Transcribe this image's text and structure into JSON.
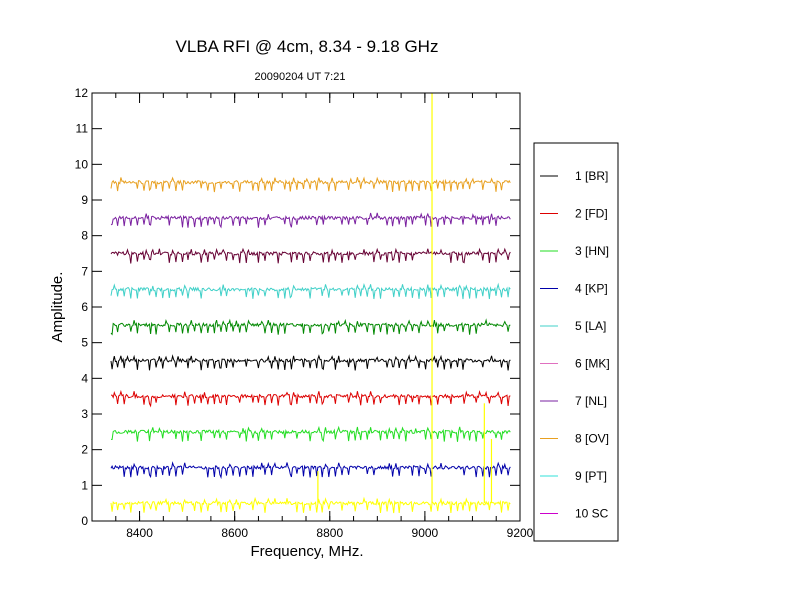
{
  "chart_data": {
    "type": "line",
    "title": "VLBA RFI @ 4cm, 8.34 - 9.18 GHz",
    "subtitle": "20090204   UT 7:21",
    "xlabel": "Frequency, MHz.",
    "ylabel": "Amplitude.",
    "xlim": [
      8300,
      9200
    ],
    "ylim": [
      0,
      12
    ],
    "x_range": [
      8340,
      9180
    ],
    "x_ticks": [
      8400,
      8600,
      8800,
      9000,
      9200
    ],
    "y_ticks": [
      0,
      1,
      2,
      3,
      4,
      5,
      6,
      7,
      8,
      9,
      10,
      11,
      12
    ],
    "grid": false,
    "legend_position": "right",
    "series": [
      {
        "name": "1 [BR]",
        "color": "#000000",
        "baseline": 4.5
      },
      {
        "name": "2 [FD]",
        "color": "#dd0000",
        "baseline": 3.5
      },
      {
        "name": "3 [HN]",
        "color": "#22dd22",
        "baseline": 2.5
      },
      {
        "name": "4 [KP]",
        "color": "#0000aa",
        "baseline": 1.5
      },
      {
        "name": "5 [LA]",
        "color": "#40d0c8",
        "baseline": 6.5
      },
      {
        "name": "6 [MK]",
        "color": "#e070c0",
        "baseline": null
      },
      {
        "name": "7 [NL]",
        "color": "#7a20a0",
        "baseline": 8.5
      },
      {
        "name": "8 [OV]",
        "color": "#e8a020",
        "baseline": 9.5
      },
      {
        "name": "9 [PT]",
        "color": "#30e0d8",
        "baseline": null
      },
      {
        "name": "10 SC",
        "color": "#cc00cc",
        "baseline": null
      }
    ],
    "extra_traces": [
      {
        "color": "#660033",
        "baseline": 7.5
      },
      {
        "color": "#008800",
        "baseline": 5.5
      },
      {
        "color": "#ffff00",
        "baseline": 0.5
      }
    ],
    "spikes": [
      {
        "color": "#ffff00",
        "x": 9015,
        "y_from": 0.5,
        "y_to": 12
      },
      {
        "color": "#ffff00",
        "x": 8775,
        "y_from": 0.5,
        "y_to": 1.4
      },
      {
        "color": "#ffff00",
        "x": 9125,
        "y_from": 0.5,
        "y_to": 3.3
      },
      {
        "color": "#ffff00",
        "x": 9140,
        "y_from": 0.5,
        "y_to": 2.3
      }
    ]
  }
}
